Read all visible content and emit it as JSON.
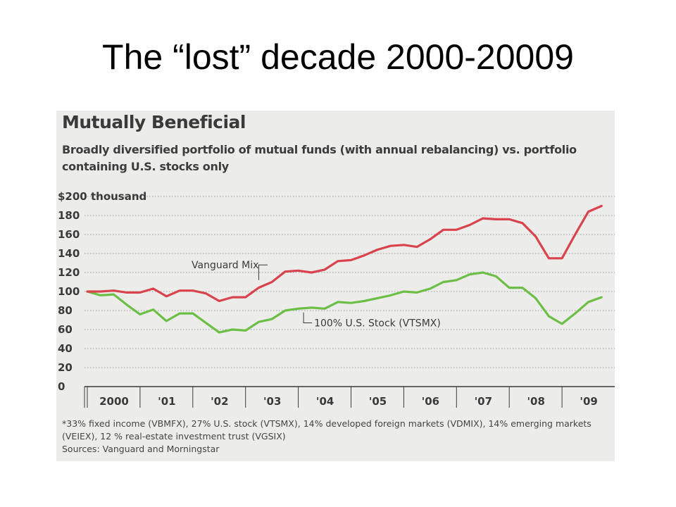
{
  "slide": {
    "title": "The “lost” decade 2000-20009"
  },
  "colors": {
    "panel_background": "#ececea",
    "vanguard_mix": "#d9434d",
    "us_stock": "#6cbf46",
    "gridline": "#9a9a9a",
    "text": "#3a3a3a"
  },
  "chart_data": {
    "type": "line",
    "title": "Mutually Beneficial",
    "subtitle_lines": [
      "Broadly diversified portfolio of mutual funds (with annual rebalancing) vs. portfolio",
      "containing U.S. stocks only"
    ],
    "ylim": [
      0,
      200
    ],
    "y_ticks": [
      "$200 thousand",
      "180",
      "160",
      "140",
      "120",
      "100",
      "80",
      "60",
      "40",
      "20",
      "0"
    ],
    "y_tick_values": [
      200,
      180,
      160,
      140,
      120,
      100,
      80,
      60,
      40,
      20,
      0
    ],
    "xlim": [
      2000,
      2010
    ],
    "x_ticks": [
      "2000",
      "'01",
      "'02",
      "'03",
      "'04",
      "'05",
      "'06",
      "'07",
      "'08",
      "'09"
    ],
    "x_tick_values": [
      2000,
      2001,
      2002,
      2003,
      2004,
      2005,
      2006,
      2007,
      2008,
      2009
    ],
    "grid": true,
    "series": [
      {
        "name": "Vanguard Mix",
        "color": "#d9434d",
        "x": [
          2000.0,
          2000.25,
          2000.5,
          2000.75,
          2001.0,
          2001.25,
          2001.5,
          2001.75,
          2002.0,
          2002.25,
          2002.5,
          2002.75,
          2003.0,
          2003.25,
          2003.5,
          2003.75,
          2004.0,
          2004.25,
          2004.5,
          2004.75,
          2005.0,
          2005.25,
          2005.5,
          2005.75,
          2006.0,
          2006.25,
          2006.5,
          2006.75,
          2007.0,
          2007.25,
          2007.5,
          2007.75,
          2008.0,
          2008.25,
          2008.5,
          2008.75,
          2009.0,
          2009.25,
          2009.5,
          2009.75
        ],
        "y": [
          100,
          100,
          101,
          99,
          99,
          103,
          95,
          101,
          101,
          98,
          90,
          94,
          94,
          104,
          110,
          121,
          122,
          120,
          123,
          132,
          133,
          138,
          144,
          148,
          149,
          147,
          155,
          165,
          165,
          170,
          177,
          176,
          176,
          172,
          158,
          135,
          135,
          160,
          184,
          190
        ]
      },
      {
        "name": "100% U.S. Stock (VTSMX)",
        "color": "#6cbf46",
        "x": [
          2000.0,
          2000.25,
          2000.5,
          2000.75,
          2001.0,
          2001.25,
          2001.5,
          2001.75,
          2002.0,
          2002.25,
          2002.5,
          2002.75,
          2003.0,
          2003.25,
          2003.5,
          2003.75,
          2004.0,
          2004.25,
          2004.5,
          2004.75,
          2005.0,
          2005.25,
          2005.5,
          2005.75,
          2006.0,
          2006.25,
          2006.5,
          2006.75,
          2007.0,
          2007.25,
          2007.5,
          2007.75,
          2008.0,
          2008.25,
          2008.5,
          2008.75,
          2009.0,
          2009.25,
          2009.5,
          2009.75
        ],
        "y": [
          100,
          96,
          97,
          86,
          76,
          81,
          69,
          77,
          77,
          67,
          57,
          60,
          59,
          68,
          71,
          80,
          82,
          83,
          82,
          89,
          88,
          90,
          93,
          96,
          100,
          99,
          103,
          110,
          112,
          118,
          120,
          116,
          104,
          104,
          93,
          74,
          66,
          77,
          89,
          94
        ]
      }
    ],
    "annotations": {
      "vanguard_mix": "Vanguard Mix",
      "us_stock": "100% U.S. Stock (VTSMX)"
    },
    "footnote_lines": [
      "*33% fixed income (VBMFX), 27% U.S. stock (VTSMX), 14% developed foreign markets (VDMIX), 14% emerging markets",
      "(VEIEX), 12 % real-estate investment trust (VGSIX)",
      "Sources: Vanguard and Morningstar"
    ]
  }
}
